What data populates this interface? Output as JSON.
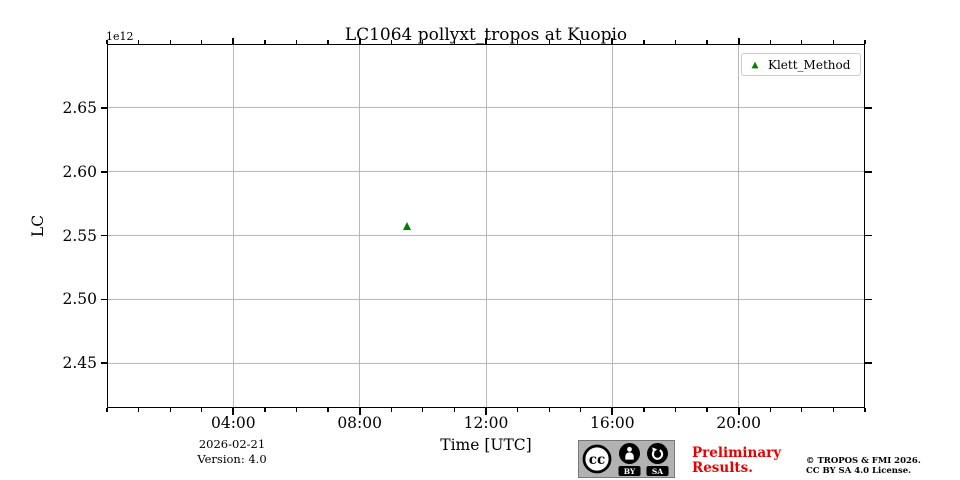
{
  "chart_data": {
    "type": "scatter",
    "title": "LC1064 pollyxt_tropos at Kuopio",
    "xlabel": "Time [UTC]",
    "ylabel": "LC",
    "y_offset_text": "1e12",
    "x_range_hours": [
      0,
      24
    ],
    "x_minor_step_hours": 1,
    "x_major_ticks": [
      {
        "hour": 4,
        "label": "04:00"
      },
      {
        "hour": 8,
        "label": "08:00"
      },
      {
        "hour": 12,
        "label": "12:00"
      },
      {
        "hour": 16,
        "label": "16:00"
      },
      {
        "hour": 20,
        "label": "20:00"
      }
    ],
    "ylim": [
      2.415,
      2.7
    ],
    "y_major_ticks": [
      2.45,
      2.5,
      2.55,
      2.6,
      2.65
    ],
    "grid": true,
    "grid_color": "#b8b8b8",
    "legend": [
      {
        "label": "Klett_Method",
        "marker": "triangle-up",
        "color": "#008000"
      }
    ],
    "series": [
      {
        "name": "Klett_Method",
        "marker": "triangle-up",
        "color": "#008000",
        "points": [
          {
            "hour": 9.5,
            "value": 2.5566
          }
        ]
      }
    ]
  },
  "footer": {
    "date": "2026-02-21",
    "version": "Version: 4.0",
    "preliminary_line1": "Preliminary",
    "preliminary_line2": "Results.",
    "preliminary_color": "#e60000",
    "copyright_line1": "© TROPOS & FMI 2026.",
    "copyright_line2": "CC BY SA 4.0 License.",
    "badge": {
      "cc": "cc",
      "by": "BY",
      "sa": "SA"
    }
  }
}
